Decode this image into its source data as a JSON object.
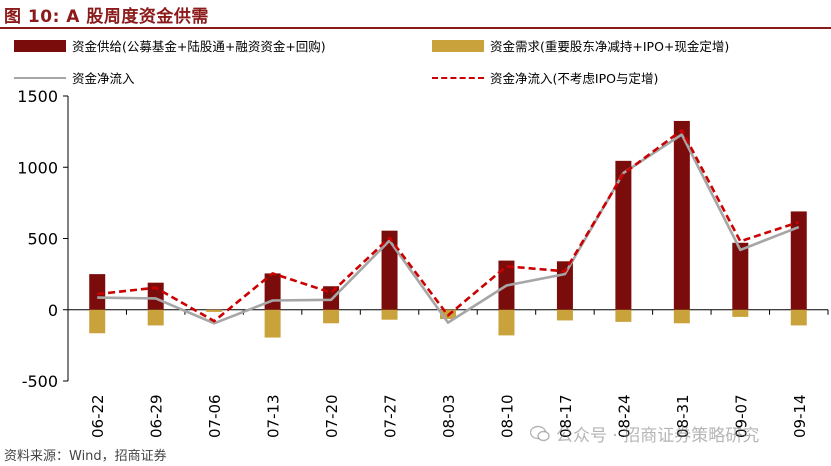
{
  "figure": {
    "title": "图 10:  A 股周度资金供需",
    "source": "资料来源：Wind，招商证券"
  },
  "watermark": {
    "text": "公众号 · 招商证券策略研究"
  },
  "colors": {
    "title": "#8b1a1a",
    "supply_bar": "#7b0c0c",
    "demand_bar": "#c9a23c",
    "net_line": "#a6a6a6",
    "net_excl_line": "#cc0000"
  },
  "chart_data": {
    "type": "bar",
    "categories": [
      "06-22",
      "06-29",
      "07-06",
      "07-13",
      "07-20",
      "07-27",
      "08-03",
      "08-10",
      "08-17",
      "08-24",
      "08-31",
      "09-07",
      "09-14"
    ],
    "ylim": [
      -500,
      1500
    ],
    "yticks": [
      -500,
      0,
      500,
      1000,
      1500
    ],
    "legend_position": "top",
    "series": [
      {
        "name": "资金供给(公募基金+陆股通+融资资金+回购)",
        "kind": "bar",
        "values": [
          250,
          190,
          -5,
          255,
          165,
          555,
          -20,
          345,
          340,
          1045,
          1325,
          470,
          690
        ]
      },
      {
        "name": "资金需求(重要股东净减持+IPO+现金定增)",
        "kind": "bar",
        "values": [
          -165,
          -110,
          -15,
          -195,
          -95,
          -70,
          -65,
          -180,
          -75,
          -85,
          -95,
          -50,
          -110
        ]
      },
      {
        "name": "资金净流入",
        "kind": "line",
        "values": [
          85,
          80,
          -95,
          65,
          70,
          485,
          -90,
          170,
          250,
          960,
          1230,
          420,
          580
        ]
      },
      {
        "name": "资金净流入(不考虑IPO与定增)",
        "kind": "line",
        "values": [
          110,
          155,
          -80,
          255,
          120,
          505,
          -40,
          305,
          270,
          955,
          1260,
          480,
          615
        ]
      }
    ]
  }
}
